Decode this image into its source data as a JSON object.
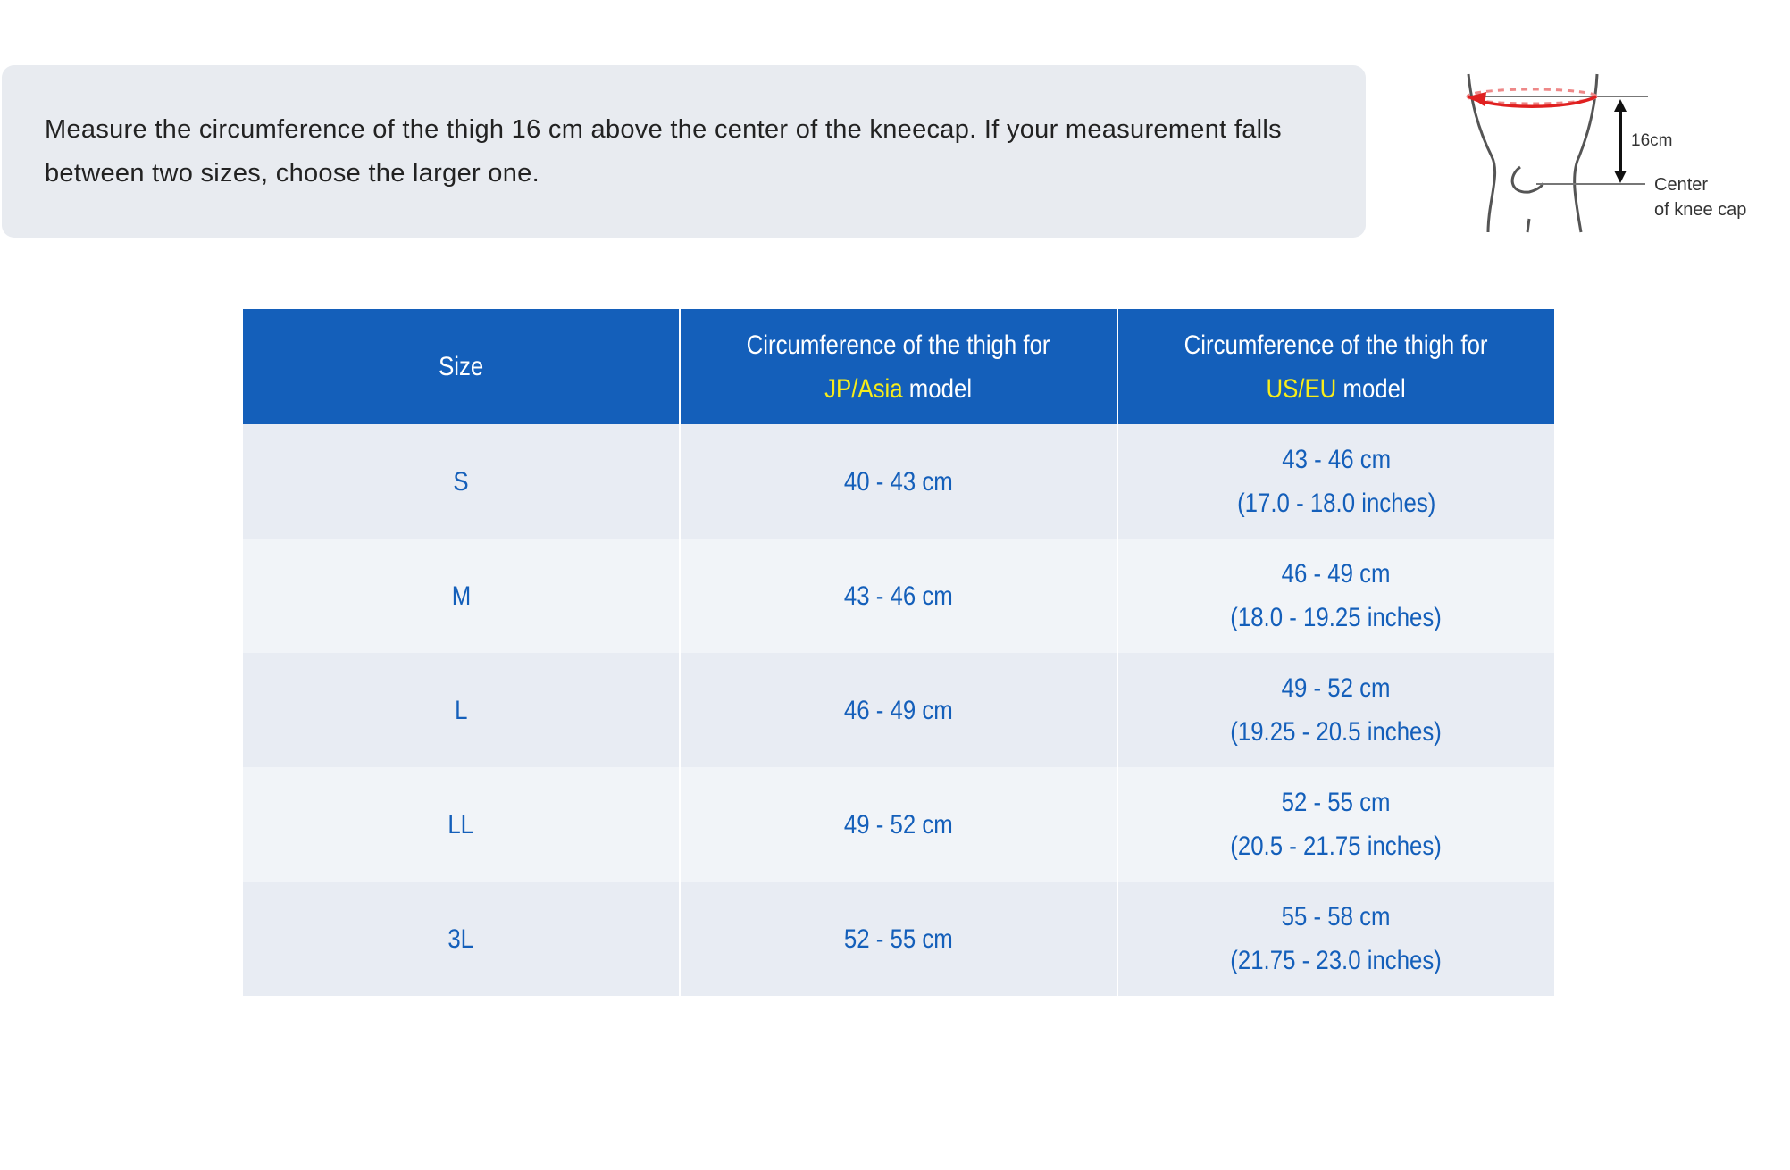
{
  "instruction": "Measure the circumference of the thigh 16 cm above the center of the kneecap. If your measurement falls between two sizes, choose the larger one.",
  "diagram": {
    "distance_label": "16cm",
    "center_label_line1": "Center",
    "center_label_line2": "of knee cap",
    "colors": {
      "measure": "#e02020",
      "lines": "#555555"
    }
  },
  "table": {
    "header": {
      "size": "Size",
      "col_prefix": "Circumference of the thigh for",
      "jp_highlight": "JP/Asia",
      "us_highlight": "US/EU",
      "suffix": "model"
    },
    "rows": [
      {
        "size": "S",
        "jp": "40 - 43 cm",
        "us_cm": "43 - 46 cm",
        "us_in": "(17.0 - 18.0 inches)"
      },
      {
        "size": "M",
        "jp": "43 - 46 cm",
        "us_cm": "46 - 49 cm",
        "us_in": "(18.0 - 19.25 inches)"
      },
      {
        "size": "L",
        "jp": "46 - 49 cm",
        "us_cm": "49 - 52 cm",
        "us_in": "(19.25 - 20.5 inches)"
      },
      {
        "size": "LL",
        "jp": "49 - 52 cm",
        "us_cm": "52 - 55 cm",
        "us_in": "(20.5 - 21.75 inches)"
      },
      {
        "size": "3L",
        "jp": "52 - 55 cm",
        "us_cm": "55 - 58 cm",
        "us_in": "(21.75 - 23.0 inches)"
      }
    ],
    "colors": {
      "header_bg": "#145fba",
      "highlight": "#f7ec1a",
      "text": "#145fba"
    }
  }
}
